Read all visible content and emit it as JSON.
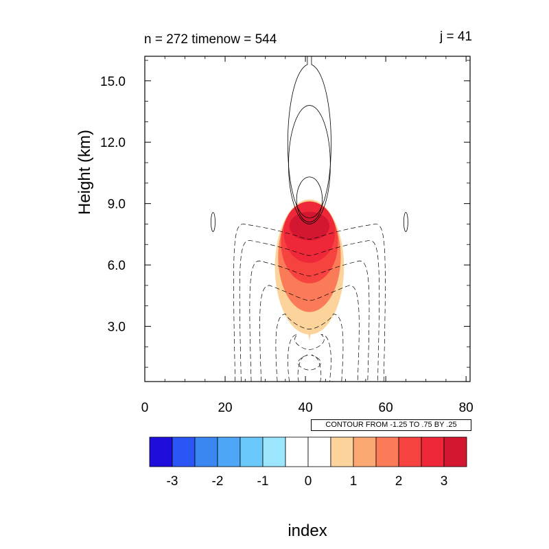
{
  "title_left": "n = 272 timenow = 544",
  "title_right": "j = 41",
  "ylabel": "Height (km)",
  "xlabel": "index",
  "info_label": "CONTOUR FROM -1.25 TO .75 BY .25",
  "colors": {
    "palette": [
      "#1f0ddb",
      "#2b55f5",
      "#3b87f2",
      "#4ea6f7",
      "#6ac8fa",
      "#9be6fd",
      "#ffffff",
      "#ffffff",
      "#fdd39c",
      "#fca872",
      "#fb7a57",
      "#f6433f",
      "#ee2838",
      "#d41731"
    ],
    "frame": "#000000"
  },
  "chart_data": {
    "type": "contour",
    "xlim": [
      0,
      81
    ],
    "ylim": [
      0.3,
      16.2
    ],
    "x_ticks": [
      0,
      20,
      40,
      60,
      80
    ],
    "x_tick_labels": [
      "0",
      "20",
      "40",
      "60",
      "80"
    ],
    "y_ticks": [
      3.0,
      6.0,
      9.0,
      12.0,
      15.0
    ],
    "y_tick_labels": [
      "3.0",
      "6.0",
      "9.0",
      "12.0",
      "15.0"
    ],
    "fill_field": {
      "description": "shaded positive anomaly centered near x=41",
      "levels": [
        0.5,
        1.5,
        2.0,
        2.5,
        3.0
      ],
      "blobs": [
        {
          "level": 0.5,
          "cx": 41,
          "cy": 5.9,
          "rx": 8.6,
          "ry": 3.3
        },
        {
          "level": 1.5,
          "cx": 41,
          "cy": 6.4,
          "rx": 7.8,
          "ry": 2.7
        },
        {
          "level": 2.0,
          "cx": 41,
          "cy": 7.1,
          "rx": 7.1,
          "ry": 2.0
        },
        {
          "level": 2.5,
          "cx": 41,
          "cy": 7.6,
          "rx": 6.4,
          "ry": 1.5
        },
        {
          "level": 3.0,
          "cx": 41,
          "cy": 7.9,
          "rx": 5.0,
          "ry": 0.7
        }
      ],
      "tail_tip": {
        "x": 41,
        "y": 2.3
      }
    },
    "line_contours": {
      "range": [
        -1.25,
        0.75
      ],
      "step": 0.25,
      "solid": [
        {
          "level": 0.25,
          "cx": 41,
          "cy": 12.5,
          "rx": 7.1,
          "ry": 4.2
        },
        {
          "level": 0.5,
          "cx": 41,
          "cy": 10.9,
          "rx": 5.2,
          "ry": 2.9
        },
        {
          "level": 0.75,
          "cx": 41,
          "cy": 9.2,
          "rx": 3.2,
          "ry": 1.1
        }
      ],
      "small_ellipses": [
        {
          "cx": 17,
          "cy": 8.1
        },
        {
          "cx": 65,
          "cy": 8.1
        }
      ]
    },
    "colorbar": {
      "levels": [
        -3.5,
        -3,
        -2.5,
        -2,
        -1.5,
        -1,
        -0.5,
        0,
        0.5,
        1,
        1.5,
        2,
        2.5,
        3,
        3.5
      ],
      "tick_values": [
        -3,
        -2,
        -1,
        0,
        1,
        2,
        3
      ],
      "tick_labels": [
        "-3",
        "-2",
        "-1",
        "0",
        "1",
        "2",
        "3"
      ]
    }
  }
}
